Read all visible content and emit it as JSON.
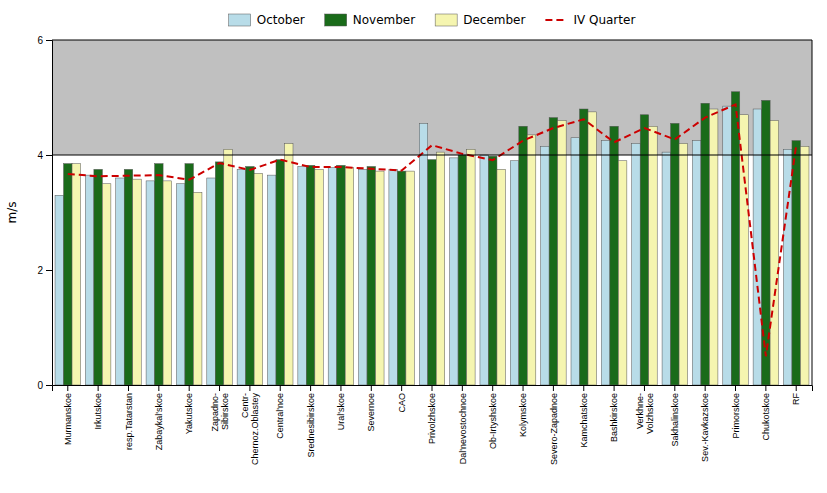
{
  "chart_data": {
    "type": "bar",
    "categories": [
      "Murmanskoe",
      "Irkutskoe",
      "resp.Tatarstan",
      "Zabaykal'skoe",
      "Yakutskoe",
      "Zapadno-\nSibirskoe",
      "Centr-\nChernoz.Oblastey",
      "Central'noe",
      "Srednesibirskoe",
      "Ural'skoe",
      "Severnoe",
      "CAO",
      "Privolzhskoe",
      "Dal'nevostochnoe",
      "Ob-Irtyshskoe",
      "Kolymskoe",
      "Severo-Zapadnoe",
      "Kamchatskoe",
      "Bashkirskoe",
      "Verkhne-\nVolzhskoe",
      "Sakhalinskoe",
      "Sev.-Kavkazskoe",
      "Primorskoe",
      "Chukotskoe",
      "RF"
    ],
    "series": [
      {
        "name": "October",
        "type": "bar",
        "color": "#b8dce8",
        "values": [
          3.3,
          3.65,
          3.6,
          3.55,
          3.5,
          3.6,
          3.75,
          3.65,
          3.8,
          3.78,
          3.75,
          3.75,
          4.55,
          3.95,
          4.0,
          3.9,
          4.15,
          4.3,
          4.25,
          4.2,
          4.05,
          4.25,
          4.85,
          4.8,
          4.1
        ]
      },
      {
        "name": "November",
        "type": "bar",
        "color": "#1a6b1a",
        "values": [
          3.85,
          3.75,
          3.75,
          3.85,
          3.85,
          3.88,
          3.8,
          3.92,
          3.82,
          3.82,
          3.8,
          3.72,
          3.92,
          4.0,
          3.98,
          4.5,
          4.65,
          4.8,
          4.5,
          4.7,
          4.55,
          4.9,
          5.1,
          4.95,
          4.25
        ]
      },
      {
        "name": "December",
        "type": "bar",
        "color": "#f5f5b0",
        "values": [
          3.85,
          3.5,
          3.58,
          3.55,
          3.35,
          4.1,
          3.68,
          4.2,
          3.75,
          3.78,
          3.72,
          3.72,
          4.05,
          4.1,
          3.75,
          4.35,
          4.6,
          4.75,
          3.9,
          4.5,
          4.2,
          4.8,
          4.7,
          4.6,
          4.15
        ]
      },
      {
        "name": "IV Quarter",
        "type": "line",
        "line_style": "dashed",
        "color": "#cc0000",
        "values": [
          3.67,
          3.63,
          3.64,
          3.65,
          3.57,
          3.86,
          3.74,
          3.92,
          3.79,
          3.79,
          3.76,
          3.73,
          4.17,
          4.02,
          3.91,
          4.25,
          4.47,
          4.62,
          4.22,
          4.47,
          4.27,
          4.65,
          4.88,
          0.5,
          4.17
        ]
      }
    ],
    "ylabel": "m/s",
    "ylim": [
      0,
      6
    ],
    "yticks": [
      0,
      2,
      4,
      6
    ],
    "hline": {
      "value": 4,
      "color": "#c0c0c0"
    },
    "legend": "top",
    "grid": false
  }
}
